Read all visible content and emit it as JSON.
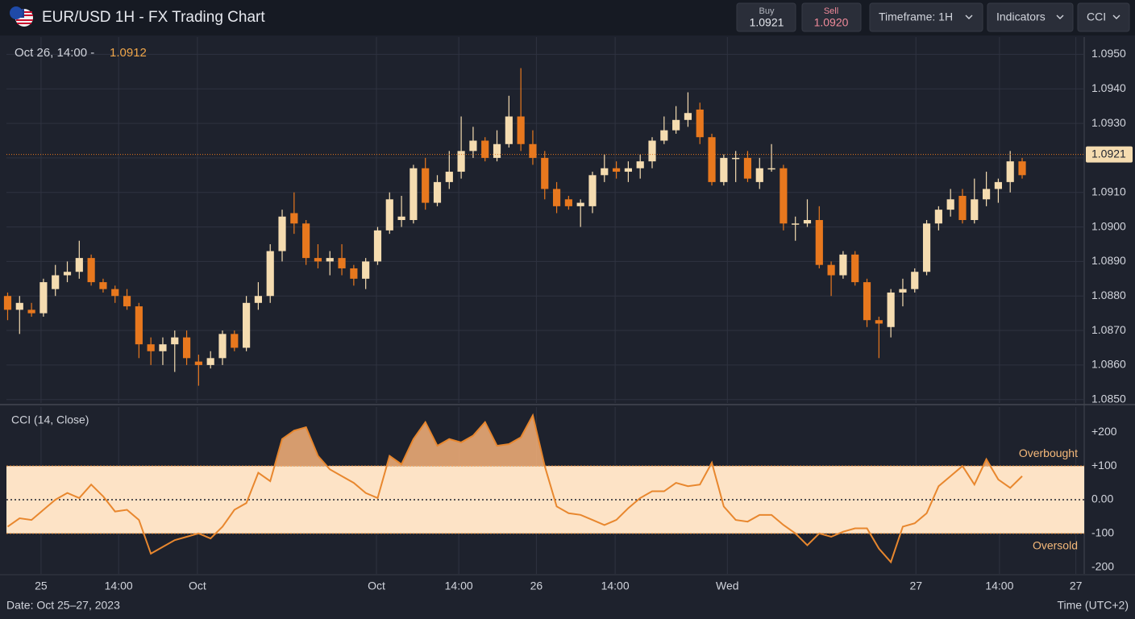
{
  "header": {
    "title": "EUR/USD 1H - FX Trading Chart",
    "buy_label": "Buy",
    "buy_price": "1.0921",
    "sell_label": "Sell",
    "sell_price": "1.0920",
    "buttons": [
      "Timeframe: 1H",
      "Indicators",
      "CCI"
    ]
  },
  "crosshair": {
    "time": "Oct 26, 14:00 -",
    "price": "1.0912"
  },
  "footer": {
    "date": "Date: Oct 25–27, 2023",
    "timezone": "Time (UTC+2)"
  },
  "chart_data": [
    {
      "type": "candlestick",
      "up_color": "#f5dcb0",
      "down_color": "#e8781e",
      "grid": true,
      "open": [
        1.088,
        1.0876,
        1.0876,
        1.0875,
        1.0882,
        1.0886,
        1.0887,
        1.0891,
        1.0884,
        1.0882,
        1.088,
        1.0877,
        1.0866,
        1.0864,
        1.0866,
        1.0868,
        1.0861,
        1.086,
        1.0862,
        1.0869,
        1.0865,
        1.0878,
        1.088,
        1.0893,
        1.0904,
        1.0901,
        1.0891,
        1.089,
        1.0891,
        1.0888,
        1.0885,
        1.089,
        1.0899,
        1.0902,
        1.0902,
        1.0917,
        1.0907,
        1.0913,
        1.0916,
        1.0922,
        1.0925,
        1.092,
        1.0924,
        1.0932,
        1.0924,
        1.092,
        1.0911,
        1.0908,
        1.0906,
        1.0906,
        1.0915,
        1.0917,
        1.0916,
        1.0917,
        1.0919,
        1.0925,
        1.0928,
        1.0931,
        1.0934,
        1.0926,
        1.0913,
        1.092,
        1.092,
        1.0913,
        1.0917,
        1.0917,
        1.0901,
        1.0901,
        1.0902,
        1.0889,
        1.0886,
        1.0892,
        1.0884,
        1.0873,
        1.0871,
        1.0881,
        1.0882,
        1.0887,
        1.0901,
        1.0905,
        1.0909,
        1.0902,
        1.0908,
        1.0911,
        1.0913,
        1.0919
      ],
      "high": [
        1.0881,
        1.088,
        1.0878,
        1.0885,
        1.0889,
        1.089,
        1.0896,
        1.0892,
        1.0885,
        1.0883,
        1.0882,
        1.0878,
        1.0868,
        1.0868,
        1.087,
        1.087,
        1.0863,
        1.0864,
        1.087,
        1.087,
        1.088,
        1.0884,
        1.0895,
        1.0905,
        1.091,
        1.0902,
        1.0895,
        1.0893,
        1.0895,
        1.0889,
        1.0891,
        1.09,
        1.091,
        1.0909,
        1.0918,
        1.092,
        1.0915,
        1.0922,
        1.0932,
        1.0929,
        1.0926,
        1.0928,
        1.0938,
        1.0946,
        1.0928,
        1.0922,
        1.0913,
        1.0909,
        1.0908,
        1.0916,
        1.0921,
        1.0919,
        1.0919,
        1.0921,
        1.0926,
        1.0932,
        1.0935,
        1.0939,
        1.0936,
        1.0927,
        1.0921,
        1.0922,
        1.0922,
        1.092,
        1.0924,
        1.0918,
        1.0903,
        1.0908,
        1.0906,
        1.089,
        1.0893,
        1.0893,
        1.0885,
        1.0874,
        1.0882,
        1.0885,
        1.0888,
        1.0902,
        1.0906,
        1.0911,
        1.0911,
        1.0914,
        1.0916,
        1.0914,
        1.0922,
        1.092
      ],
      "low": [
        1.0873,
        1.0869,
        1.0874,
        1.0874,
        1.088,
        1.0884,
        1.0885,
        1.0883,
        1.0881,
        1.0878,
        1.0876,
        1.0862,
        1.086,
        1.086,
        1.0858,
        1.086,
        1.0854,
        1.0859,
        1.086,
        1.0864,
        1.0864,
        1.0876,
        1.0878,
        1.089,
        1.0898,
        1.0889,
        1.0888,
        1.0886,
        1.0886,
        1.0883,
        1.0882,
        1.0889,
        1.0898,
        1.09,
        1.0901,
        1.0905,
        1.0906,
        1.0911,
        1.0914,
        1.092,
        1.0919,
        1.0919,
        1.0923,
        1.0922,
        1.0918,
        1.0908,
        1.0904,
        1.0905,
        1.09,
        1.0904,
        1.0913,
        1.0914,
        1.0913,
        1.0914,
        1.0917,
        1.0924,
        1.0927,
        1.0929,
        1.0924,
        1.0912,
        1.0912,
        1.0913,
        1.0913,
        1.0911,
        1.0916,
        1.0899,
        1.0896,
        1.09,
        1.0888,
        1.088,
        1.0885,
        1.0883,
        1.0871,
        1.0862,
        1.0868,
        1.0877,
        1.0881,
        1.0886,
        1.0899,
        1.0903,
        1.0901,
        1.0901,
        1.0906,
        1.0907,
        1.091,
        1.0914
      ],
      "close": [
        1.0876,
        1.0878,
        1.0875,
        1.0884,
        1.0886,
        1.0887,
        1.0891,
        1.0884,
        1.0882,
        1.088,
        1.0877,
        1.0866,
        1.0864,
        1.0866,
        1.0868,
        1.0862,
        1.086,
        1.0862,
        1.0869,
        1.0865,
        1.0878,
        1.088,
        1.0893,
        1.0903,
        1.0901,
        1.0891,
        1.089,
        1.0891,
        1.0888,
        1.0885,
        1.089,
        1.0899,
        1.0908,
        1.0903,
        1.0917,
        1.0907,
        1.0913,
        1.0916,
        1.0922,
        1.0925,
        1.092,
        1.0924,
        1.0932,
        1.0924,
        1.092,
        1.0911,
        1.0906,
        1.0906,
        1.0907,
        1.0915,
        1.0917,
        1.0916,
        1.0917,
        1.0919,
        1.0925,
        1.0928,
        1.0931,
        1.0933,
        1.0926,
        1.0913,
        1.092,
        1.092,
        1.0914,
        1.0917,
        1.0917,
        1.0901,
        1.0901,
        1.0902,
        1.0889,
        1.0886,
        1.0892,
        1.0884,
        1.0873,
        1.0872,
        1.0881,
        1.0882,
        1.0887,
        1.0901,
        1.0905,
        1.0908,
        1.0902,
        1.0908,
        1.0911,
        1.0913,
        1.0919,
        1.0915
      ],
      "last_price": 1.0921,
      "last_price_color": "#e8781e",
      "ylim": [
        1.0849,
        1.0955
      ],
      "yticks": [
        {
          "value": 1.095,
          "label": "1.0950"
        },
        {
          "value": 1.094,
          "label": "1.0940"
        },
        {
          "value": 1.093,
          "label": "1.0930"
        },
        {
          "value": 1.092,
          "label": "1.0920"
        },
        {
          "value": 1.091,
          "label": "1.0910"
        },
        {
          "value": 1.09,
          "label": "1.0900"
        },
        {
          "value": 1.089,
          "label": "1.0890"
        },
        {
          "value": 1.088,
          "label": "1.0880"
        },
        {
          "value": 1.087,
          "label": "1.0870"
        },
        {
          "value": 1.086,
          "label": "1.0860"
        },
        {
          "value": 1.085,
          "label": "1.0850"
        }
      ],
      "xlim": [
        -0.1,
        90.2
      ],
      "xticks": [
        {
          "value": 2.8,
          "label": "25"
        },
        {
          "value": 9.3,
          "label": "14:00"
        },
        {
          "value": 15.9,
          "label": "Oct"
        },
        {
          "value": 30.9,
          "label": "Oct"
        },
        {
          "value": 37.8,
          "label": "14:00"
        },
        {
          "value": 44.3,
          "label": "26"
        },
        {
          "value": 50.9,
          "label": "14:00"
        },
        {
          "value": 60.3,
          "label": "Wed"
        },
        {
          "value": 76.1,
          "label": "27"
        },
        {
          "value": 83.1,
          "label": "14:00"
        },
        {
          "value": 89.5,
          "label": "27"
        }
      ]
    },
    {
      "type": "line",
      "title": "CCI (14, Close)",
      "color": "#e8872e",
      "values": [
        -80,
        -55,
        -60,
        -30,
        0,
        20,
        5,
        45,
        10,
        -35,
        -30,
        -60,
        -160,
        -140,
        -120,
        -110,
        -100,
        -115,
        -80,
        -30,
        -10,
        80,
        55,
        180,
        205,
        215,
        130,
        90,
        70,
        50,
        20,
        5,
        130,
        105,
        180,
        230,
        160,
        180,
        170,
        190,
        230,
        160,
        165,
        185,
        250,
        100,
        -20,
        -40,
        -45,
        -60,
        -75,
        -60,
        -25,
        5,
        25,
        25,
        50,
        40,
        45,
        110,
        -20,
        -60,
        -65,
        -45,
        -45,
        -75,
        -100,
        -135,
        -100,
        -110,
        -95,
        -85,
        -85,
        -145,
        -185,
        -80,
        -70,
        -40,
        40,
        70,
        100,
        45,
        120,
        60,
        35,
        70
      ],
      "overbought": {
        "label": "Overbought",
        "value": 100
      },
      "oversold": {
        "label": "Oversold",
        "value": -100
      },
      "ylim": [
        -220,
        275
      ],
      "yticks": [
        {
          "value": 200,
          "label": "+200"
        },
        {
          "value": 100,
          "label": "+100"
        },
        {
          "value": 0,
          "label": "0.00"
        },
        {
          "value": -100,
          "label": "-100"
        },
        {
          "value": -200,
          "label": "-200"
        }
      ]
    }
  ]
}
